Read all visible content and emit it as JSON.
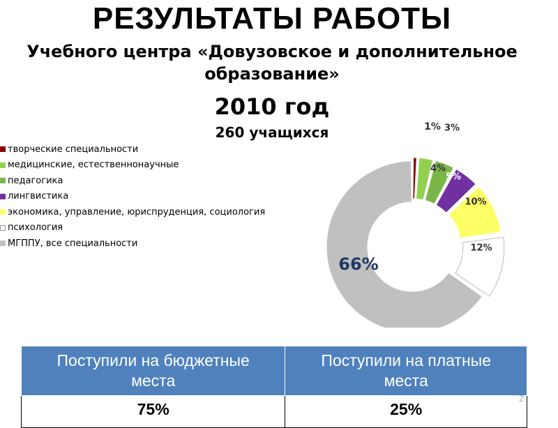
{
  "title": "РЕЗУЛЬТАТЫ РАБОТЫ",
  "subtitle": "Учебного центра «Довузовское и дополнительное образование»",
  "year": "2010 год",
  "students": "260 учащихся",
  "chart_data": {
    "type": "pie",
    "style": "doughnut",
    "legend_position": "left",
    "categories": [
      "творческие специальности",
      "медицинские, естественнонаучные",
      "педагогика",
      "лингвистика",
      "экономика, управление, юриспруденция, социология",
      "психология",
      "МГППУ, все специальности"
    ],
    "values": [
      1,
      3,
      4,
      5,
      10,
      12,
      66
    ],
    "labels": [
      "1%",
      "3%",
      "4%",
      "5%",
      "10%",
      "12%",
      "66%"
    ],
    "colors": [
      "#8b0000",
      "#92d050",
      "#7ab648",
      "#7030a0",
      "#ffff66",
      "#ffffff",
      "#c0c0c0"
    ]
  },
  "table": {
    "headers": [
      "Поступили на бюджетные места",
      "Поступили на платные места"
    ],
    "values": [
      "75%",
      "25%"
    ]
  },
  "page_number": "2"
}
